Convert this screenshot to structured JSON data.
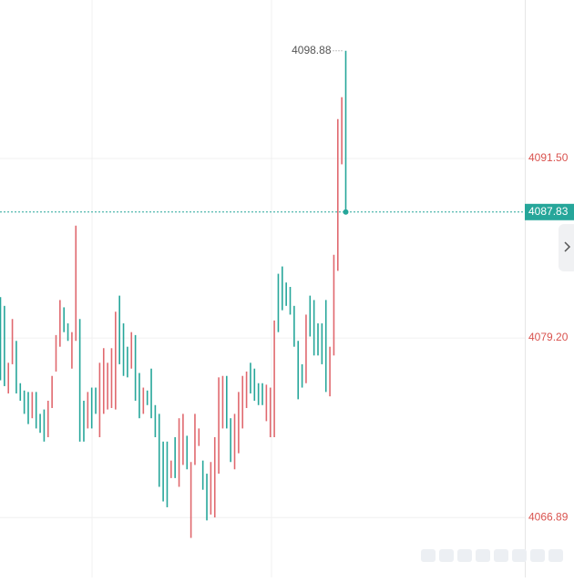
{
  "chart_data": {
    "type": "candlestick",
    "up_color": "#e0686e",
    "down_color": "#26a69a",
    "ylim": [
      4062.79,
      4102.36
    ],
    "yticks": [
      4066.89,
      {
        "value": 4079.2,
        "label": "4079.20"
      },
      {
        "value": 4091.5,
        "label": "4091.50"
      }
    ],
    "grid": true,
    "high_label": 4098.88,
    "last_price": 4087.83,
    "open": [
      4082.0,
      4081.4,
      4075.4,
      4077.4,
      4079.0,
      4076.1,
      4075.6,
      4075.5,
      4073.7,
      4075.5,
      4074.0,
      4074.3,
      4072.4,
      4074.4,
      4076.9,
      4078.6,
      4081.3,
      4080.2,
      4077.1,
      4079.0,
      4080.5,
      4074.9,
      4073.0,
      4075.8,
      4075.8,
      4072.4,
      4074.0,
      4074.3,
      4074.4,
      4074.3,
      4082.1,
      4080.2,
      4078.6,
      4077.1,
      4079.4,
      4076.8,
      4074.0,
      4075.6,
      4077.1,
      4074.6,
      4074.0,
      4072.1,
      4072.1,
      4069.6,
      4072.4,
      4069.0,
      4070.5,
      4072.5,
      4065.5,
      4070.5,
      4071.8,
      4070.8,
      4069.9,
      4067.1,
      4066.9,
      4069.9,
      4073.0,
      4076.6,
      4073.7,
      4070.2,
      4071.3,
      4073.0,
      4074.4,
      4077.5,
      4077.1,
      4076.1,
      4076.1,
      4073.5,
      4072.4,
      4072.4,
      4083.6,
      4084.1,
      4083.0,
      4082.7,
      4081.4,
      4079.0,
      4077.4,
      4076.1,
      4082.1,
      4081.8,
      4080.2,
      4080.2,
      4081.8,
      4075.2,
      4078.0,
      4083.8,
      4091.1,
      4098.88
    ],
    "close": [
      4076.3,
      4075.9,
      4077.5,
      4080.5,
      4075.4,
      4074.9,
      4074.0,
      4073.3,
      4075.5,
      4073.0,
      4072.7,
      4072.1,
      4074.9,
      4076.6,
      4079.4,
      4081.8,
      4079.6,
      4079.0,
      4079.6,
      4086.9,
      4072.1,
      4072.1,
      4075.5,
      4073.0,
      4074.0,
      4077.5,
      4078.5,
      4077.5,
      4078.5,
      4081.0,
      4077.4,
      4076.6,
      4076.5,
      4079.6,
      4074.9,
      4073.7,
      4075.8,
      4074.6,
      4073.7,
      4072.4,
      4069.0,
      4068.0,
      4067.6,
      4070.8,
      4069.6,
      4073.7,
      4074.0,
      4070.2,
      4070.7,
      4074.0,
      4073.0,
      4068.8,
      4066.7,
      4070.7,
      4072.4,
      4076.5,
      4076.6,
      4073.0,
      4070.7,
      4074.0,
      4075.5,
      4076.6,
      4076.9,
      4075.4,
      4074.9,
      4074.6,
      4074.6,
      4076.0,
      4075.8,
      4080.4,
      4079.6,
      4081.1,
      4081.4,
      4080.8,
      4078.6,
      4075.0,
      4075.8,
      4080.8,
      4079.3,
      4078.0,
      4078.0,
      4077.4,
      4075.5,
      4078.6,
      4084.9,
      4094.2,
      4095.7,
      4087.83
    ]
  }
}
